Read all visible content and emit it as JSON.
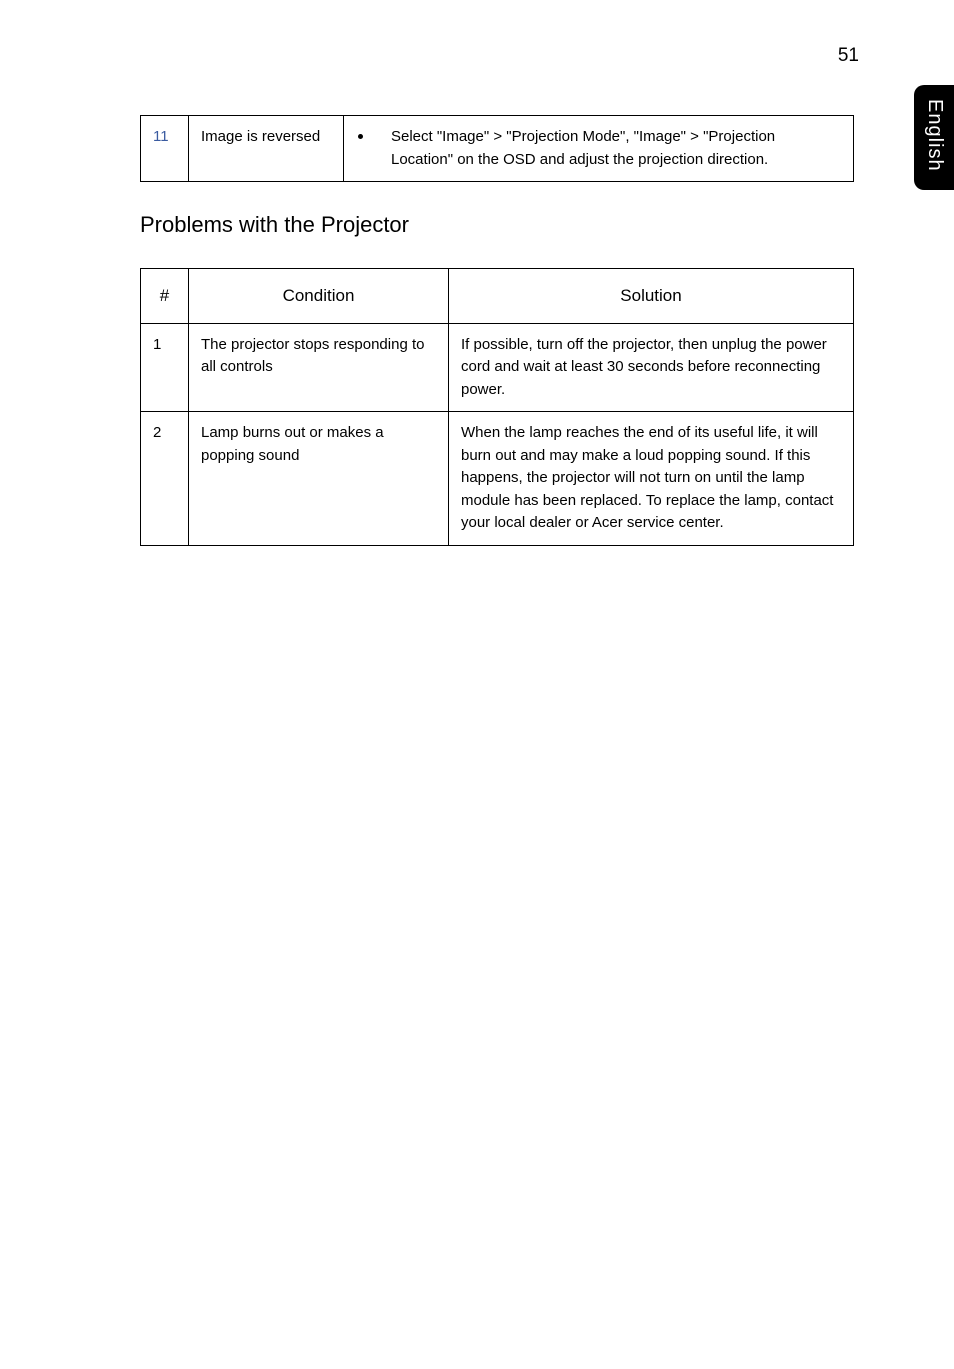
{
  "page_number": "51",
  "side_tab": "English",
  "table1": {
    "row_num": "11",
    "condition": "Image is reversed",
    "solution": "Select \"Image\" > \"Projection Mode\", \"Image\" > \"Projection Location\" on the OSD and adjust the projection direction."
  },
  "section_title": "Problems with the Projector",
  "table2": {
    "header_num": "#",
    "header_condition": "Condition",
    "header_solution": "Solution",
    "rows": [
      {
        "num": "1",
        "condition": "The projector stops responding to all controls",
        "solution": "If possible, turn off the projector, then unplug the power cord and wait at least 30 seconds before reconnecting power."
      },
      {
        "num": "2",
        "condition": "Lamp burns out or makes a popping sound",
        "solution": "When the lamp reaches the end of its useful life, it will burn out and may make a loud popping sound. If this happens, the projector will not turn on until the lamp module has been replaced. To replace the lamp, contact your local dealer or Acer service center."
      }
    ]
  }
}
